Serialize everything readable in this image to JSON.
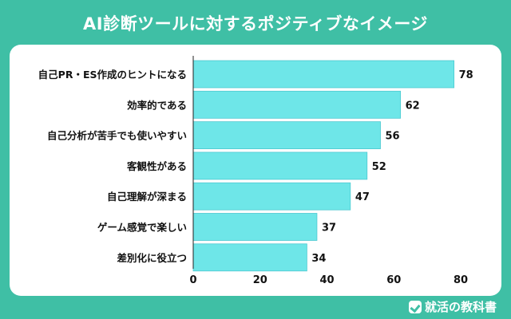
{
  "header": {
    "title": "AI診断ツールに対するポジティブなイメージ"
  },
  "brand": {
    "name": "就活の教科書",
    "icon": "check-logo-icon"
  },
  "colors": {
    "background": "#3fbfa5",
    "bar": "#6ee6e8",
    "bar_stroke": "#4cc9d0",
    "text": "#111111",
    "axis": "#222222"
  },
  "chart_data": {
    "type": "bar",
    "orientation": "horizontal",
    "title": "AI診断ツールに対するポジティブなイメージ",
    "categories": [
      "自己PR・ES作成のヒントになる",
      "効率的である",
      "自己分析が苦手でも使いやすい",
      "客観性がある",
      "自己理解が深まる",
      "ゲーム感覚で楽しい",
      "差別化に役立つ"
    ],
    "values": [
      78,
      62,
      56,
      52,
      47,
      37,
      34
    ],
    "xlim": [
      0,
      80
    ],
    "xticks": [
      0,
      20,
      40,
      60,
      80
    ],
    "grid": false,
    "legend": "none",
    "data_labels": true
  }
}
